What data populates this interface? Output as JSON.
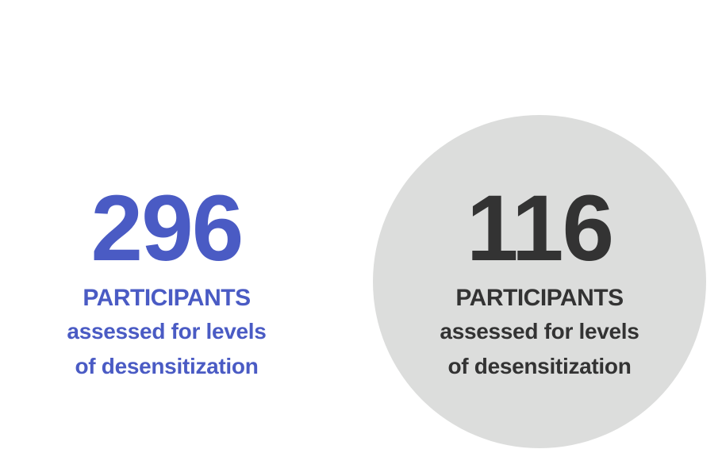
{
  "stats": [
    {
      "number": "296",
      "label": "PARTICIPANTS",
      "desc_line1": "assessed for levels",
      "desc_line2": "of desensitization",
      "color": "#4a5bc4"
    },
    {
      "number": "116",
      "label": "PARTICIPANTS",
      "desc_line1": "assessed for levels",
      "desc_line2": "of desensitization",
      "color": "#333333",
      "background": "#dcdddc"
    }
  ]
}
